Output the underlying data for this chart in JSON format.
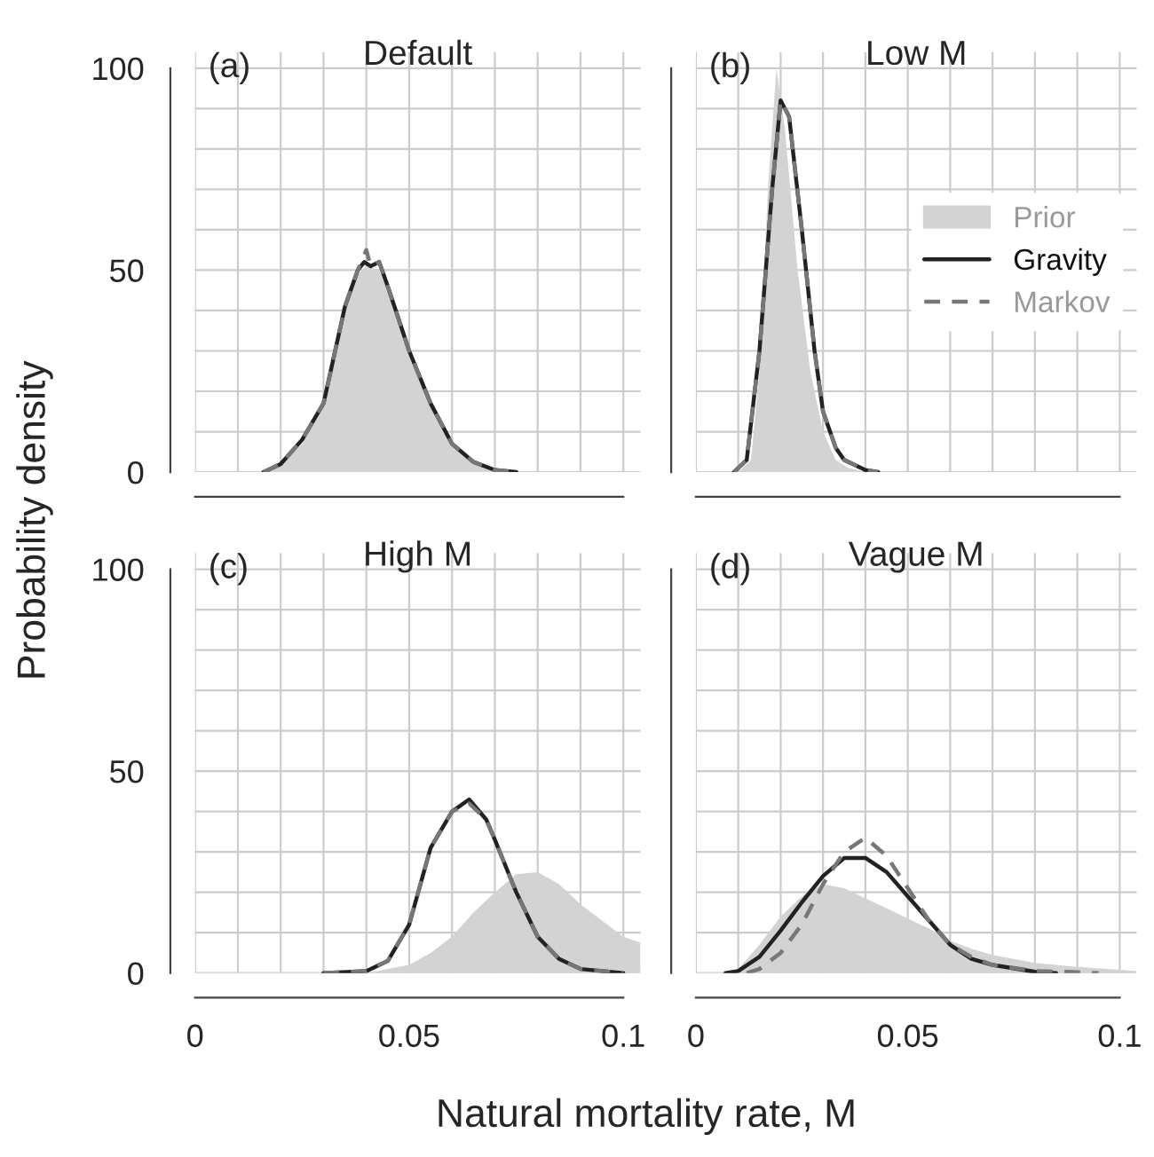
{
  "chart_data": [
    {
      "type": "line",
      "title": "Default",
      "annotations": [
        "(a)"
      ],
      "ylabel": "Probability density",
      "tick_labels": "y",
      "grid": true,
      "legend": false,
      "xlim": [
        0,
        0.104
      ],
      "ylim": [
        0,
        104
      ],
      "xticks": [
        0,
        {
          "value": 0.01,
          "label": null
        },
        {
          "value": 0.02,
          "label": null
        },
        {
          "value": 0.03,
          "label": null
        },
        {
          "value": 0.04,
          "label": null
        },
        0.05,
        {
          "value": 0.06,
          "label": null
        },
        {
          "value": 0.07,
          "label": null
        },
        {
          "value": 0.08,
          "label": null
        },
        {
          "value": 0.09,
          "label": null
        },
        0.1
      ],
      "yticks": [
        0,
        {
          "value": 10,
          "label": null
        },
        {
          "value": 20,
          "label": null
        },
        {
          "value": 30,
          "label": null
        },
        {
          "value": 40,
          "label": null
        },
        50,
        {
          "value": 60,
          "label": null
        },
        {
          "value": 70,
          "label": null
        },
        {
          "value": 80,
          "label": null
        },
        {
          "value": 90,
          "label": null
        },
        100
      ],
      "series": [
        {
          "type": "area",
          "color": "#d3d3d3",
          "x": [
            0.016,
            0.02,
            0.025,
            0.03,
            0.035,
            0.038,
            0.04,
            0.043,
            0.045,
            0.05,
            0.055,
            0.06,
            0.065,
            0.07,
            0.075
          ],
          "values": [
            0,
            2,
            7,
            16,
            40,
            49,
            51,
            50,
            45,
            29,
            16,
            7,
            2.5,
            0.5,
            0
          ]
        },
        {
          "type": "line",
          "color": "#222222",
          "line_style": "solid",
          "x": [
            0.016,
            0.02,
            0.025,
            0.03,
            0.035,
            0.038,
            0.0395,
            0.041,
            0.043,
            0.045,
            0.05,
            0.055,
            0.06,
            0.065,
            0.07,
            0.075
          ],
          "values": [
            0,
            2,
            8,
            17,
            41,
            50,
            52,
            51,
            52,
            46,
            30,
            17,
            7,
            2.5,
            0.5,
            0
          ]
        },
        {
          "type": "line",
          "color": "#777777",
          "line_style": "dashed",
          "x": [
            0.016,
            0.02,
            0.025,
            0.03,
            0.035,
            0.038,
            0.04,
            0.041,
            0.043,
            0.045,
            0.05,
            0.055,
            0.06,
            0.065,
            0.07,
            0.075
          ],
          "values": [
            0,
            2,
            8,
            17,
            41,
            50,
            55,
            51,
            52,
            46,
            30,
            17,
            7,
            2.5,
            0.5,
            0
          ]
        }
      ]
    },
    {
      "type": "line",
      "title": "Low M",
      "annotations": [
        "(b)"
      ],
      "tick_labels": false,
      "grid": true,
      "legend": "right",
      "xlim": [
        0,
        0.104
      ],
      "ylim": [
        0,
        104
      ],
      "xticks": [
        0,
        {
          "value": 0.01,
          "label": null
        },
        {
          "value": 0.02,
          "label": null
        },
        {
          "value": 0.03,
          "label": null
        },
        {
          "value": 0.04,
          "label": null
        },
        0.05,
        {
          "value": 0.06,
          "label": null
        },
        {
          "value": 0.07,
          "label": null
        },
        {
          "value": 0.08,
          "label": null
        },
        {
          "value": 0.09,
          "label": null
        },
        0.1
      ],
      "yticks": [
        0,
        {
          "value": 10,
          "label": null
        },
        {
          "value": 20,
          "label": null
        },
        {
          "value": 30,
          "label": null
        },
        {
          "value": 40,
          "label": null
        },
        50,
        {
          "value": 60,
          "label": null
        },
        {
          "value": 70,
          "label": null
        },
        {
          "value": 80,
          "label": null
        },
        {
          "value": 90,
          "label": null
        },
        100
      ],
      "series": [
        {
          "type": "area",
          "name": "Prior",
          "color": "#d3d3d3",
          "x": [
            0.01,
            0.013,
            0.015,
            0.017,
            0.019,
            0.021,
            0.024,
            0.027,
            0.03,
            0.033,
            0.036,
            0.04
          ],
          "values": [
            0,
            3,
            25,
            70,
            100,
            85,
            50,
            25,
            10,
            3,
            1,
            0
          ]
        },
        {
          "type": "line",
          "name": "Gravity",
          "color": "#222222",
          "line_style": "solid",
          "x": [
            0.009,
            0.012,
            0.015,
            0.018,
            0.02,
            0.022,
            0.025,
            0.028,
            0.03,
            0.033,
            0.035,
            0.04,
            0.043
          ],
          "values": [
            0,
            3,
            30,
            70,
            92,
            88,
            60,
            30,
            15,
            6,
            3,
            0.5,
            0
          ]
        },
        {
          "type": "line",
          "name": "Markov",
          "color": "#777777",
          "line_style": "dashed",
          "x": [
            0.009,
            0.012,
            0.015,
            0.018,
            0.02,
            0.022,
            0.025,
            0.028,
            0.03,
            0.033,
            0.035,
            0.04,
            0.043
          ],
          "values": [
            0,
            3,
            30,
            70,
            92,
            88,
            60,
            30,
            15,
            6,
            3,
            0.5,
            0
          ]
        }
      ]
    },
    {
      "type": "line",
      "title": "High M",
      "annotations": [
        "(c)"
      ],
      "grid": true,
      "legend": false,
      "xlim": [
        0,
        0.104
      ],
      "ylim": [
        0,
        104
      ],
      "xticks": [
        0,
        {
          "value": 0.01,
          "label": null
        },
        {
          "value": 0.02,
          "label": null
        },
        {
          "value": 0.03,
          "label": null
        },
        {
          "value": 0.04,
          "label": null
        },
        0.05,
        {
          "value": 0.06,
          "label": null
        },
        {
          "value": 0.07,
          "label": null
        },
        {
          "value": 0.08,
          "label": null
        },
        {
          "value": 0.09,
          "label": null
        },
        0.1
      ],
      "yticks": [
        0,
        {
          "value": 10,
          "label": null
        },
        {
          "value": 20,
          "label": null
        },
        {
          "value": 30,
          "label": null
        },
        {
          "value": 40,
          "label": null
        },
        50,
        {
          "value": 60,
          "label": null
        },
        {
          "value": 70,
          "label": null
        },
        {
          "value": 80,
          "label": null
        },
        {
          "value": 90,
          "label": null
        },
        100
      ],
      "series": [
        {
          "type": "area",
          "color": "#d3d3d3",
          "x": [
            0.04,
            0.05,
            0.055,
            0.06,
            0.065,
            0.07,
            0.075,
            0.08,
            0.085,
            0.09,
            0.095,
            0.1,
            0.104
          ],
          "values": [
            0,
            2,
            5,
            9,
            15,
            20,
            24.5,
            25,
            22,
            17,
            13,
            9,
            7.5
          ]
        },
        {
          "type": "line",
          "color": "#222222",
          "line_style": "solid",
          "x": [
            0.03,
            0.04,
            0.045,
            0.05,
            0.055,
            0.06,
            0.064,
            0.068,
            0.07,
            0.075,
            0.08,
            0.085,
            0.09,
            0.1
          ],
          "values": [
            0,
            0.5,
            3,
            12,
            31,
            40,
            43,
            38,
            33,
            20,
            9,
            3.5,
            1,
            0
          ]
        },
        {
          "type": "line",
          "color": "#777777",
          "line_style": "dashed",
          "x": [
            0.03,
            0.04,
            0.045,
            0.05,
            0.055,
            0.06,
            0.064,
            0.068,
            0.07,
            0.075,
            0.08,
            0.085,
            0.09,
            0.1
          ],
          "values": [
            0,
            0.5,
            3,
            12,
            31,
            40,
            42,
            38,
            33,
            20,
            9,
            3.5,
            1,
            0
          ]
        }
      ]
    },
    {
      "type": "line",
      "title": "Vague M",
      "annotations": [
        "(d)"
      ],
      "xlabel": "Natural mortality rate, M",
      "tick_labels": "x",
      "grid": true,
      "legend": false,
      "xlim": [
        0,
        0.104
      ],
      "ylim": [
        0,
        104
      ],
      "xticks": [
        0,
        {
          "value": 0.01,
          "label": null
        },
        {
          "value": 0.02,
          "label": null
        },
        {
          "value": 0.03,
          "label": null
        },
        {
          "value": 0.04,
          "label": null
        },
        0.05,
        {
          "value": 0.06,
          "label": null
        },
        {
          "value": 0.07,
          "label": null
        },
        {
          "value": 0.08,
          "label": null
        },
        {
          "value": 0.09,
          "label": null
        },
        0.1
      ],
      "yticks": [
        0,
        {
          "value": 10,
          "label": null
        },
        {
          "value": 20,
          "label": null
        },
        {
          "value": 30,
          "label": null
        },
        {
          "value": 40,
          "label": null
        },
        50,
        {
          "value": 60,
          "label": null
        },
        {
          "value": 70,
          "label": null
        },
        {
          "value": 80,
          "label": null
        },
        {
          "value": 90,
          "label": null
        },
        100
      ],
      "series": [
        {
          "type": "area",
          "color": "#d3d3d3",
          "x": [
            0.007,
            0.01,
            0.015,
            0.02,
            0.025,
            0.03,
            0.035,
            0.04,
            0.045,
            0.05,
            0.055,
            0.06,
            0.065,
            0.07,
            0.075,
            0.08,
            0.09,
            0.1,
            0.104
          ],
          "values": [
            0,
            1,
            7,
            14,
            19,
            22,
            21,
            18.5,
            16,
            13.5,
            11,
            8,
            6,
            4.5,
            3.5,
            2.5,
            1.5,
            0.8,
            0.5
          ]
        },
        {
          "type": "line",
          "color": "#222222",
          "line_style": "solid",
          "x": [
            0.007,
            0.01,
            0.015,
            0.02,
            0.025,
            0.03,
            0.035,
            0.04,
            0.045,
            0.05,
            0.055,
            0.06,
            0.065,
            0.07,
            0.08,
            0.085
          ],
          "values": [
            0,
            0.5,
            4,
            10.5,
            17.5,
            24,
            28.5,
            28.5,
            25,
            19,
            13,
            7,
            3.5,
            2,
            0.3,
            0
          ]
        },
        {
          "type": "line",
          "color": "#777777",
          "line_style": "dashed",
          "x": [
            0.012,
            0.015,
            0.02,
            0.025,
            0.03,
            0.035,
            0.04,
            0.045,
            0.05,
            0.055,
            0.06,
            0.065,
            0.07,
            0.08,
            0.09,
            0.095
          ],
          "values": [
            0,
            1,
            5,
            12,
            22,
            30,
            33.5,
            29,
            21,
            13,
            7,
            4,
            2,
            0.5,
            0.2,
            0
          ]
        }
      ]
    }
  ]
}
